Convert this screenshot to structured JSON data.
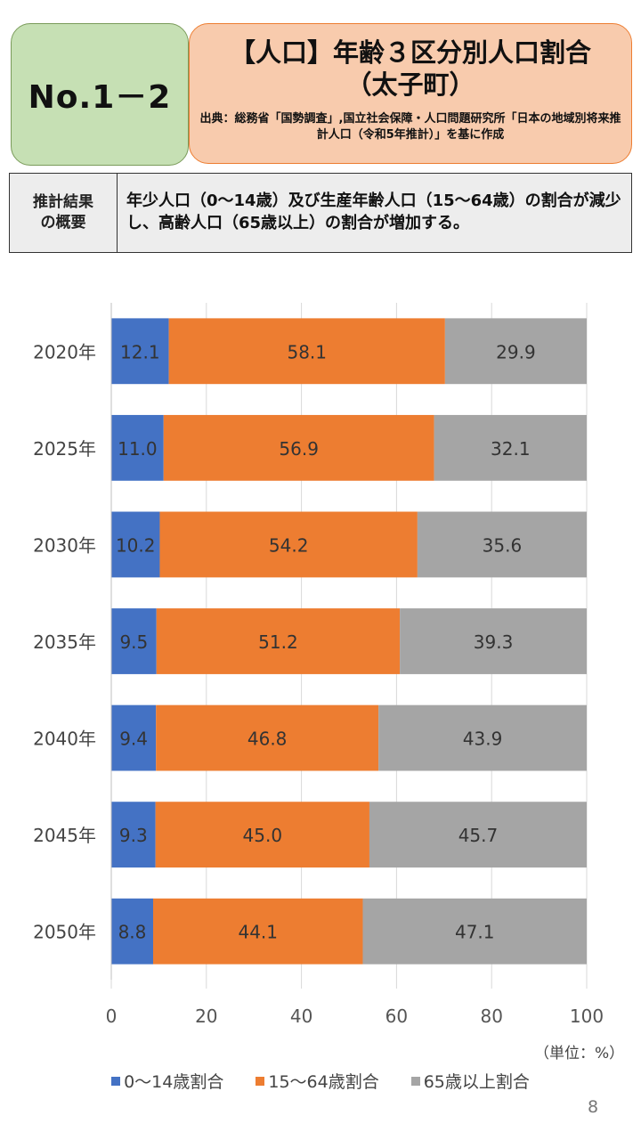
{
  "header": {
    "badge": "No.1－2",
    "title_line1": "【人口】年齢３区分別人口割合",
    "title_line2": "（太子町）",
    "source": "出典：総務省「国勢調査」,国立社会保障・人口問題研究所「日本の地域別将来推計人口（令和5年推計）」を基に作成"
  },
  "summary": {
    "label": "推計結果\nの概要",
    "text": "年少人口（0～14歳）及び生産年齢人口（15～64歳）の割合が減少し、高齢人口（65歳以上）の割合が増加する。"
  },
  "chart_data": {
    "type": "bar",
    "orientation": "horizontal",
    "stacked": true,
    "categories": [
      "2020年",
      "2025年",
      "2030年",
      "2035年",
      "2040年",
      "2045年",
      "2050年"
    ],
    "series": [
      {
        "name": "0～14歳割合",
        "color": "#4472c4",
        "values": [
          12.1,
          11.0,
          10.2,
          9.5,
          9.4,
          9.3,
          8.8
        ]
      },
      {
        "name": "15～64歳割合",
        "color": "#ed7d31",
        "values": [
          58.1,
          56.9,
          54.2,
          51.2,
          46.8,
          45.0,
          44.1
        ]
      },
      {
        "name": "65歳以上割合",
        "color": "#a5a5a5",
        "values": [
          29.9,
          32.1,
          35.6,
          39.3,
          43.9,
          45.7,
          47.1
        ]
      }
    ],
    "xlim": [
      0,
      100
    ],
    "xticks": [
      0,
      20,
      40,
      60,
      80,
      100
    ],
    "grid": true,
    "unit_label": "（単位：%）",
    "legend_position": "bottom"
  },
  "page_number": "8"
}
